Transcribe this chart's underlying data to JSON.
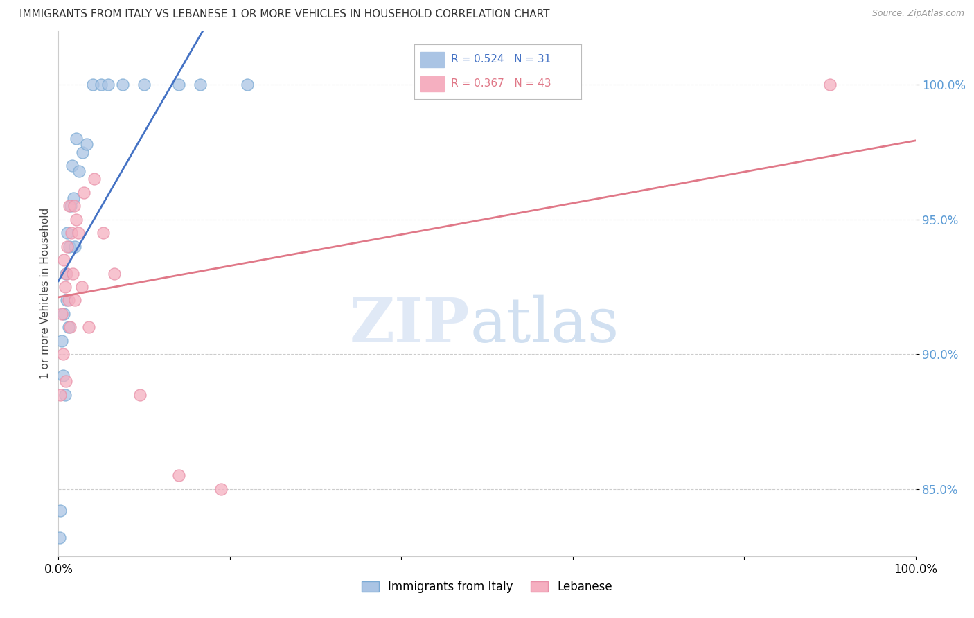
{
  "title": "IMMIGRANTS FROM ITALY VS LEBANESE 1 OR MORE VEHICLES IN HOUSEHOLD CORRELATION CHART",
  "source": "Source: ZipAtlas.com",
  "ylabel": "1 or more Vehicles in Household",
  "xlim": [
    0.0,
    100.0
  ],
  "ylim": [
    82.5,
    102.0
  ],
  "yticks": [
    85.0,
    90.0,
    95.0,
    100.0
  ],
  "ytick_labels": [
    "85.0%",
    "90.0%",
    "95.0%",
    "100.0%"
  ],
  "italy_R": 0.524,
  "italy_N": 31,
  "lebanese_R": 0.367,
  "lebanese_N": 43,
  "italy_color": "#aac4e4",
  "lebanese_color": "#f5afc0",
  "italy_edge_color": "#7aaad4",
  "lebanese_edge_color": "#e890a8",
  "italy_line_color": "#4472c4",
  "lebanese_line_color": "#e07888",
  "italy_x": [
    0.15,
    0.25,
    0.4,
    0.55,
    0.65,
    0.75,
    0.85,
    0.95,
    1.05,
    1.15,
    1.3,
    1.45,
    1.6,
    1.75,
    1.9,
    2.1,
    2.4,
    2.8,
    3.3,
    4.0,
    5.0,
    5.8,
    7.5,
    10.0,
    14.0,
    16.5,
    22.0
  ],
  "italy_y": [
    83.2,
    84.2,
    90.5,
    89.2,
    91.5,
    88.5,
    93.0,
    92.0,
    94.5,
    91.0,
    94.0,
    95.5,
    97.0,
    95.8,
    94.0,
    98.0,
    96.8,
    97.5,
    97.8,
    100.0,
    100.0,
    100.0,
    100.0,
    100.0,
    100.0,
    100.0,
    100.0
  ],
  "lebanese_x": [
    0.2,
    0.35,
    0.55,
    0.65,
    0.75,
    0.85,
    0.95,
    1.05,
    1.15,
    1.25,
    1.35,
    1.5,
    1.65,
    1.8,
    1.95,
    2.1,
    2.3,
    2.7,
    3.0,
    3.5,
    4.2,
    5.2,
    6.5,
    9.5,
    14.0,
    19.0,
    90.0
  ],
  "lebanese_y": [
    88.5,
    91.5,
    90.0,
    93.5,
    92.5,
    89.0,
    93.0,
    94.0,
    92.0,
    95.5,
    91.0,
    94.5,
    93.0,
    95.5,
    92.0,
    95.0,
    94.5,
    92.5,
    96.0,
    91.0,
    96.5,
    94.5,
    93.0,
    88.5,
    85.5,
    85.0,
    100.0
  ],
  "watermark_zip": "ZIP",
  "watermark_atlas": "atlas",
  "background_color": "#ffffff",
  "grid_color": "#cccccc",
  "legend_italy_label": "Immigrants from Italy",
  "legend_lebanese_label": "Lebanese"
}
